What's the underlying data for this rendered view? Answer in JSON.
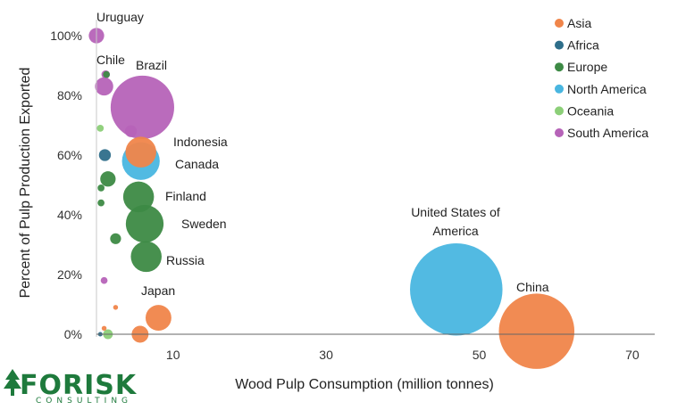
{
  "chart_data": {
    "type": "scatter",
    "title": "",
    "xlabel": "Wood Pulp Consumption (million tonnes)",
    "ylabel": "Percent of Pulp Production Exported",
    "xlim": [
      -10,
      73
    ],
    "ylim": [
      0,
      1
    ],
    "x_ticks": [
      10,
      30,
      50,
      70
    ],
    "y_ticks": [
      0,
      0.2,
      0.4,
      0.6,
      0.8,
      1.0
    ],
    "y_tick_labels": [
      "0%",
      "20%",
      "40%",
      "60%",
      "80%",
      "100%"
    ],
    "grid": false,
    "legend_position": "top-right",
    "series": [
      {
        "name": "Asia",
        "color": "#f0854a",
        "points": [
          {
            "x": 57.5,
            "y": 0.01,
            "size": 12,
            "label": "China"
          },
          {
            "x": 8.1,
            "y": 0.055,
            "size": 1.4,
            "label": "Japan"
          },
          {
            "x": 5.7,
            "y": 0.0,
            "size": 0.6,
            "label": ""
          },
          {
            "x": 5.8,
            "y": 0.61,
            "size": 2.0,
            "label": "Indonesia"
          },
          {
            "x": 2.5,
            "y": 0.09,
            "size": 0.05,
            "label": ""
          },
          {
            "x": 1.0,
            "y": 0.02,
            "size": 0.05,
            "label": ""
          }
        ]
      },
      {
        "name": "Africa",
        "color": "#2e6e8a",
        "points": [
          {
            "x": 1.1,
            "y": 0.6,
            "size": 0.3,
            "label": ""
          },
          {
            "x": 0.5,
            "y": 0.0,
            "size": 0.02,
            "label": ""
          }
        ]
      },
      {
        "name": "Europe",
        "color": "#3d8a45",
        "points": [
          {
            "x": 6.3,
            "y": 0.37,
            "size": 3.0,
            "label": "Sweden"
          },
          {
            "x": 5.5,
            "y": 0.46,
            "size": 2.0,
            "label": "Finland"
          },
          {
            "x": 6.5,
            "y": 0.26,
            "size": 2.0,
            "label": "Russia"
          },
          {
            "x": 1.5,
            "y": 0.52,
            "size": 0.5,
            "label": ""
          },
          {
            "x": 2.5,
            "y": 0.32,
            "size": 0.25,
            "label": ""
          },
          {
            "x": 0.6,
            "y": 0.49,
            "size": 0.1,
            "label": ""
          },
          {
            "x": 0.6,
            "y": 0.44,
            "size": 0.1,
            "label": ""
          },
          {
            "x": 1.3,
            "y": 0.87,
            "size": 0.1,
            "label": ""
          }
        ]
      },
      {
        "name": "North America",
        "color": "#49b6e0",
        "points": [
          {
            "x": 47,
            "y": 0.15,
            "size": 18,
            "label": "United States of America"
          },
          {
            "x": 5.8,
            "y": 0.58,
            "size": 3.0,
            "label": "Canada"
          }
        ]
      },
      {
        "name": "Oceania",
        "color": "#8ccf78",
        "points": [
          {
            "x": 0.5,
            "y": 0.69,
            "size": 0.1,
            "label": ""
          },
          {
            "x": 1.5,
            "y": 0.0,
            "size": 0.2,
            "label": ""
          }
        ]
      },
      {
        "name": "South America",
        "color": "#b663b8",
        "points": [
          {
            "x": 6.0,
            "y": 0.76,
            "size": 8.5,
            "label": "Brazil"
          },
          {
            "x": 1.0,
            "y": 0.83,
            "size": 0.7,
            "label": "Chile"
          },
          {
            "x": 0.0,
            "y": 1.0,
            "size": 0.5,
            "label": "Uruguay"
          },
          {
            "x": 4.5,
            "y": 0.68,
            "size": 0.3,
            "label": ""
          },
          {
            "x": 1.2,
            "y": 0.87,
            "size": 0.15,
            "label": ""
          },
          {
            "x": 1.0,
            "y": 0.18,
            "size": 0.1,
            "label": ""
          }
        ]
      }
    ]
  },
  "labels": {
    "uruguay": "Uruguay",
    "chile": "Chile",
    "brazil": "Brazil",
    "indonesia": "Indonesia",
    "canada": "Canada",
    "finland": "Finland",
    "sweden": "Sweden",
    "russia": "Russia",
    "japan": "Japan",
    "usa_line1": "United States of",
    "usa_line2": "America",
    "china": "China"
  },
  "logo": {
    "main": "FORISK",
    "sub": "CONSULTING"
  }
}
